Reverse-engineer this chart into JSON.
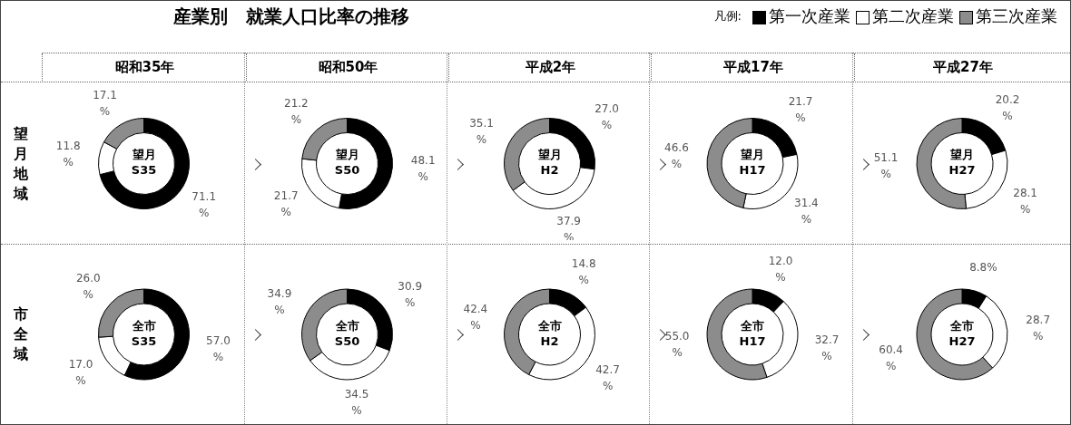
{
  "chart_data": [
    {
      "type": "other",
      "title": "産業別　就業人口比率の推移",
      "legend_title": "凡例:",
      "annotations": [
        "昭和35年",
        "昭和50年",
        "平成2年",
        "平成17年",
        "平成27年",
        "望月地域",
        "市全域"
      ]
    },
    {
      "type": "donut",
      "title": "望月\nS35",
      "legend": "top right",
      "categories": [
        "第一次産業",
        "第二次産業",
        "第三次産業"
      ],
      "values": [
        71.1,
        11.8,
        17.1
      ],
      "colors": [
        "#000000",
        "#ffffff",
        "#8c8c8c"
      ],
      "value_labels": [
        "71.1\n%",
        "11.8\n%",
        "17.1\n%"
      ]
    },
    {
      "type": "donut",
      "title": "望月\nS50",
      "categories": [
        null,
        null,
        null
      ],
      "values": [
        48.1,
        21.7,
        21.2
      ],
      "colors": [
        "#000000",
        "#ffffff",
        "#8c8c8c"
      ],
      "value_labels": [
        "48.1\n%",
        "21.7\n%",
        "21.2\n%"
      ]
    },
    {
      "type": "donut",
      "title": "望月\nH2",
      "categories": [
        null,
        null,
        null
      ],
      "values": [
        27.0,
        37.9,
        35.1
      ],
      "colors": [
        "#000000",
        "#ffffff",
        "#8c8c8c"
      ],
      "value_labels": [
        "27.0\n%",
        "37.9\n%",
        "35.1\n%"
      ]
    },
    {
      "type": "donut",
      "title": "望月\nH17",
      "categories": [
        null,
        null,
        null
      ],
      "values": [
        21.7,
        31.4,
        46.6
      ],
      "colors": [
        "#000000",
        "#ffffff",
        "#8c8c8c"
      ],
      "value_labels": [
        "21.7\n%",
        "31.4\n%",
        "46.6\n%"
      ]
    },
    {
      "type": "donut",
      "title": "望月\nH27",
      "categories": [
        null,
        null,
        null
      ],
      "values": [
        20.2,
        28.1,
        51.1
      ],
      "colors": [
        "#000000",
        "#ffffff",
        "#8c8c8c"
      ],
      "value_labels": [
        "20.2\n%",
        "28.1\n%",
        "51.1\n%"
      ]
    },
    {
      "type": "donut",
      "title": "全市\nS35",
      "categories": [
        null,
        null,
        null
      ],
      "values": [
        57.0,
        17.0,
        26.0
      ],
      "colors": [
        "#000000",
        "#ffffff",
        "#8c8c8c"
      ],
      "value_labels": [
        "57.0\n%",
        "17.0\n%",
        "26.0\n%"
      ]
    },
    {
      "type": "donut",
      "title": "全市\nS50",
      "categories": [
        null,
        null,
        null
      ],
      "values": [
        30.9,
        34.5,
        34.9
      ],
      "colors": [
        "#000000",
        "#ffffff",
        "#8c8c8c"
      ],
      "value_labels": [
        "30.9\n%",
        "34.5\n%",
        "34.9\n%"
      ]
    },
    {
      "type": "donut",
      "title": "全市\nH2",
      "categories": [
        null,
        null,
        null
      ],
      "values": [
        14.8,
        42.7,
        42.4
      ],
      "colors": [
        "#000000",
        "#ffffff",
        "#8c8c8c"
      ],
      "value_labels": [
        "14.8\n%",
        "42.7\n%",
        "42.4\n%"
      ]
    },
    {
      "type": "donut",
      "title": "全市\nH17",
      "categories": [
        null,
        null,
        null
      ],
      "values": [
        12.0,
        32.7,
        55.0
      ],
      "colors": [
        "#000000",
        "#ffffff",
        "#8c8c8c"
      ],
      "value_labels": [
        "12.0\n%",
        "32.7\n%",
        "55.0\n%"
      ]
    },
    {
      "type": "donut",
      "title": "全市\nH27",
      "categories": [
        null,
        null,
        null
      ],
      "values": [
        8.8,
        28.7,
        60.4
      ],
      "colors": [
        "#000000",
        "#ffffff",
        "#8c8c8c"
      ],
      "value_labels": [
        "8.8%",
        "28.7\n%",
        "60.4\n%"
      ]
    }
  ]
}
